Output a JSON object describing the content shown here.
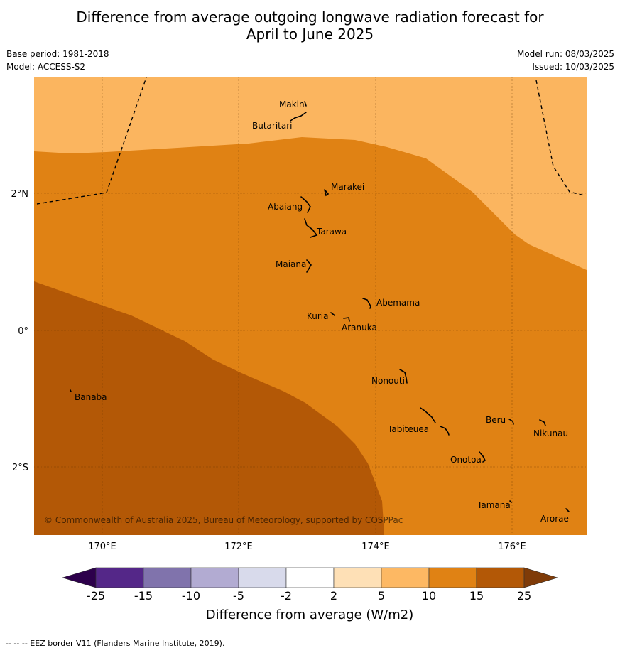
{
  "title": {
    "line1": "Difference from average outgoing longwave radiation forecast for",
    "line2": "April to June 2025"
  },
  "meta": {
    "base_period": "Base period: 1981-2018",
    "model": "Model: ACCESS-S2",
    "model_run": "Model run: 08/03/2025",
    "issued": "Issued: 10/03/2025"
  },
  "map": {
    "copyright": "© Commonwealth of Australia 2025, Bureau of Meteorology, supported by COSPPac",
    "lat_labels": [
      "2°N",
      "0°",
      "2°S"
    ],
    "lon_labels": [
      "170°E",
      "172°E",
      "174°E",
      "176°E"
    ],
    "places": [
      {
        "name": "Makin"
      },
      {
        "name": "Butaritari"
      },
      {
        "name": "Marakei"
      },
      {
        "name": "Abaiang"
      },
      {
        "name": "Tarawa"
      },
      {
        "name": "Maiana"
      },
      {
        "name": "Abemama"
      },
      {
        "name": "Kuria"
      },
      {
        "name": "Aranuka"
      },
      {
        "name": "Nonouti"
      },
      {
        "name": "Banaba"
      },
      {
        "name": "Beru"
      },
      {
        "name": "Tabiteuea"
      },
      {
        "name": "Nikunau"
      },
      {
        "name": "Onotoa"
      },
      {
        "name": "Tamana"
      },
      {
        "name": "Arorae"
      }
    ],
    "fill_colors": {
      "band_5_10": "#fbb55f",
      "band_10_15": "#e08214",
      "band_15_25": "#b35806"
    }
  },
  "colorbar": {
    "title": "Difference from average (W/m2)",
    "ticks": [
      "-25",
      "-15",
      "-10",
      "-5",
      "-2",
      "2",
      "5",
      "10",
      "15",
      "25"
    ],
    "colors": [
      "#2d004b",
      "#542788",
      "#8073ac",
      "#b2abd2",
      "#d8daeb",
      "#ffffff",
      "#fee0b6",
      "#fdb863",
      "#e08214",
      "#b35806",
      "#7f3b08"
    ]
  },
  "footer": "--  --  -- EEZ border V11 (Flanders Marine Institute, 2019)."
}
